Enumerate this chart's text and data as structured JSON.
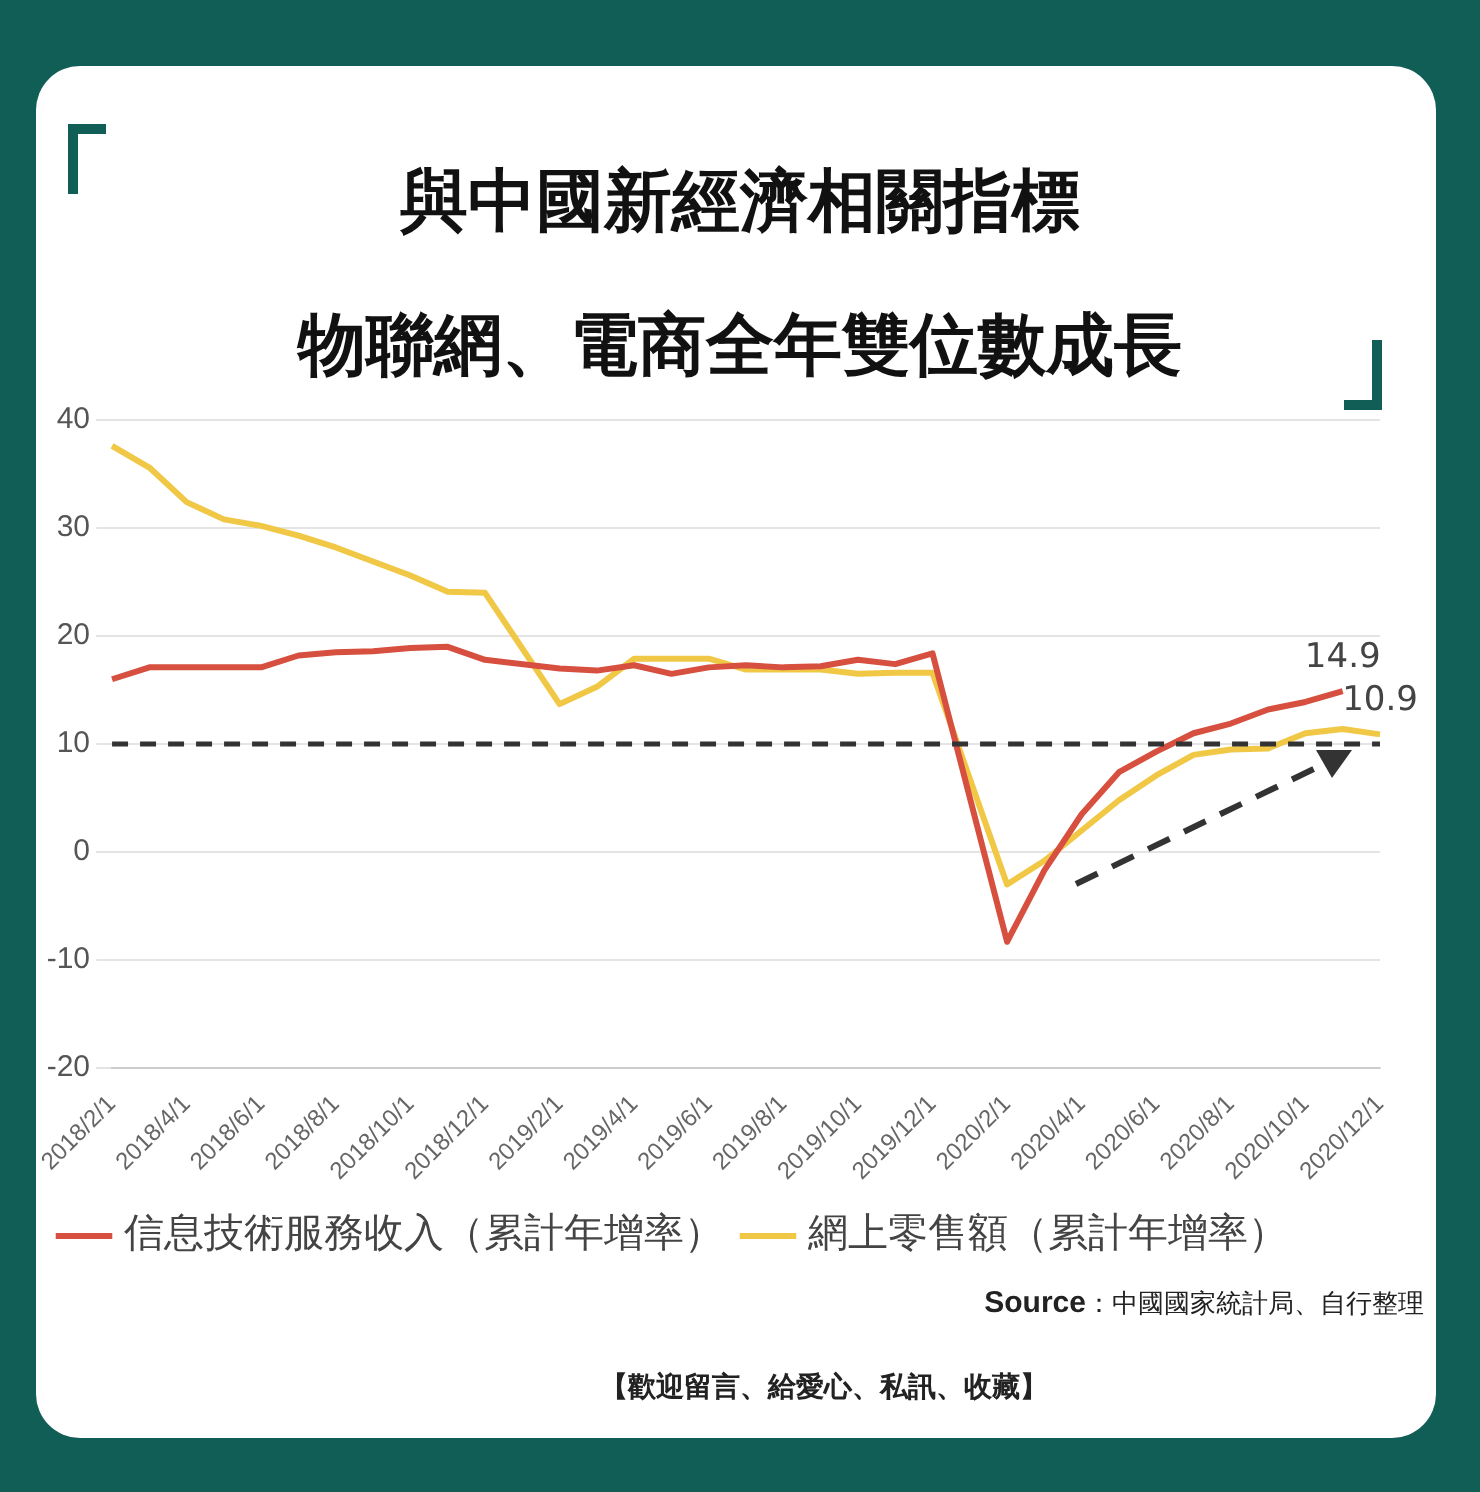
{
  "chart_data": {
    "type": "line",
    "title": "與中國新經濟相關指標",
    "subtitle": "物聯網、電商全年雙位數成長",
    "categories": [
      "2018/2/1",
      null,
      "2018/4/1",
      null,
      "2018/6/1",
      null,
      "2018/8/1",
      null,
      "2018/10/1",
      null,
      "2018/12/1",
      null,
      "2019/2/1",
      null,
      "2019/4/1",
      null,
      "2019/6/1",
      null,
      "2019/8/1",
      null,
      "2019/10/1",
      null,
      "2019/12/1",
      null,
      "2020/2/1",
      null,
      "2020/4/1",
      null,
      "2020/6/1",
      null,
      "2020/8/1",
      null,
      "2020/10/1",
      null,
      "2020/12/1"
    ],
    "series": [
      {
        "name": "信息技術服務收入（累計年增率）",
        "color": "#d64f3f",
        "values": [
          16.0,
          17.1,
          17.1,
          17.1,
          17.1,
          18.2,
          18.5,
          18.6,
          18.9,
          19.0,
          17.8,
          null,
          17.0,
          16.8,
          17.3,
          16.5,
          17.1,
          17.3,
          17.1,
          17.2,
          17.8,
          17.4,
          18.4,
          null,
          -8.3,
          -1.7,
          3.5,
          7.4,
          9.3,
          11.0,
          11.9,
          13.2,
          13.9,
          14.9,
          null
        ],
        "value_labels": [
          null,
          null,
          null,
          null,
          null,
          null,
          null,
          null,
          null,
          null,
          null,
          null,
          null,
          null,
          null,
          null,
          null,
          null,
          null,
          null,
          null,
          null,
          null,
          null,
          null,
          null,
          null,
          null,
          null,
          null,
          null,
          null,
          null,
          "14.9",
          null
        ]
      },
      {
        "name": "網上零售額（累計年增率）",
        "color": "#f0c846",
        "values": [
          37.6,
          35.6,
          32.4,
          30.8,
          30.2,
          29.3,
          28.2,
          26.9,
          25.6,
          24.1,
          24.0,
          null,
          13.7,
          15.3,
          17.9,
          17.9,
          17.9,
          16.9,
          16.9,
          16.9,
          16.5,
          16.6,
          16.6,
          null,
          -3.0,
          -0.8,
          2.0,
          4.8,
          7.1,
          9.0,
          9.5,
          9.6,
          11.0,
          11.4,
          10.9
        ],
        "value_labels": [
          null,
          null,
          null,
          null,
          null,
          null,
          null,
          null,
          null,
          null,
          null,
          null,
          null,
          null,
          null,
          null,
          null,
          null,
          null,
          null,
          null,
          null,
          null,
          null,
          null,
          null,
          null,
          null,
          null,
          null,
          null,
          null,
          null,
          null,
          "10.9"
        ]
      }
    ],
    "ylim": [
      -20,
      40
    ],
    "yticks": [
      -20,
      -10,
      0,
      10,
      20,
      30,
      40
    ],
    "grid": "y",
    "legend": "bottom",
    "marker": "none",
    "line_style": "solid",
    "ref_lines": [
      {
        "axis": "y",
        "value": 10,
        "color": "#333333",
        "line_style": "dashed"
      }
    ],
    "annotations": [
      "Source：中國國家統計局、自行整理",
      "【歡迎留言、給愛心、私訊、收藏】"
    ]
  }
}
